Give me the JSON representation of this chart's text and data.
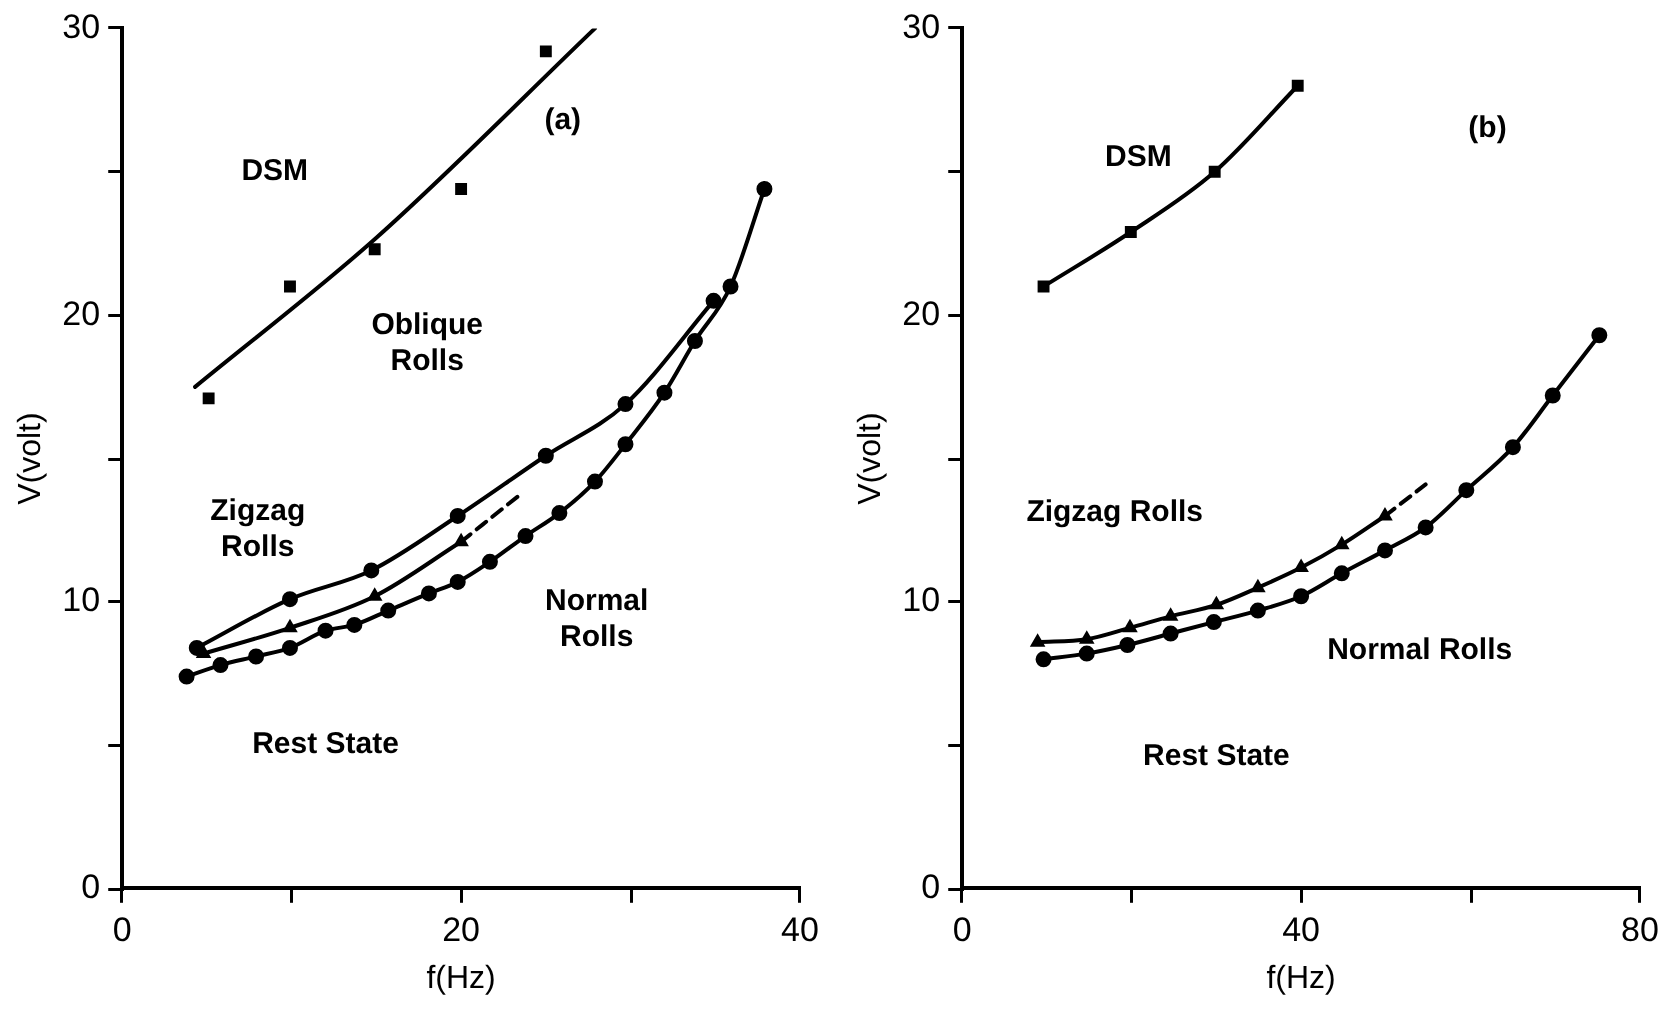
{
  "chart_data": [
    {
      "type": "line",
      "xlabel": "f(Hz)",
      "ylabel": "V(volt)",
      "xlim": [
        0,
        40
      ],
      "ylim": [
        0,
        30
      ],
      "xticks": [
        0,
        {
          "value": 10,
          "label": null
        },
        20,
        {
          "value": 30,
          "label": null
        },
        40
      ],
      "yticks": [
        0,
        {
          "value": 5,
          "label": null
        },
        10,
        {
          "value": 15,
          "label": null
        },
        20,
        {
          "value": 25,
          "label": null
        },
        30
      ],
      "grid": false,
      "legend": false,
      "series": [
        {
          "type": "scatter",
          "marker": "square",
          "color": "#000000",
          "x": [
            5.1,
            9.9,
            14.9,
            20,
            25
          ],
          "values": [
            17.1,
            21.0,
            22.3,
            24.4,
            29.2
          ]
        },
        {
          "marker": "none",
          "line_style": "solid",
          "color": "#000000",
          "x": [
            4.3,
            15,
            27.9
          ],
          "values": [
            17.5,
            22.7,
            30
          ]
        },
        {
          "marker": "circle",
          "line_style": "solid",
          "color": "#000000",
          "x": [
            4.4,
            9.9,
            14.7,
            19.8,
            25,
            29.7,
            34.9
          ],
          "values": [
            8.4,
            10.1,
            11.1,
            13.0,
            15.1,
            16.9,
            20.5
          ]
        },
        {
          "marker": "triangle",
          "line_style": "solid",
          "color": "#000000",
          "x": [
            4.8,
            9.9,
            14.9,
            20
          ],
          "values": [
            8.2,
            9.1,
            10.2,
            12.1
          ]
        },
        {
          "marker": "none",
          "line_style": "dashed",
          "color": "#000000",
          "x": [
            20,
            23.6
          ],
          "values": [
            12.1,
            13.8
          ]
        },
        {
          "marker": "circle",
          "line_style": "solid",
          "color": "#000000",
          "x": [
            3.8,
            5.8,
            7.9,
            9.9,
            12,
            13.7,
            15.7,
            18.1,
            19.8,
            21.7,
            23.8,
            25.8,
            27.9,
            29.7,
            32,
            33.8,
            35.9,
            37.9
          ],
          "values": [
            7.4,
            7.8,
            8.1,
            8.4,
            9.0,
            9.2,
            9.7,
            10.3,
            10.7,
            11.4,
            12.3,
            13.1,
            14.2,
            15.5,
            17.3,
            19.1,
            21.0,
            24.4
          ]
        }
      ],
      "annotations": [
        "(a)",
        "DSM",
        "Oblique\nRolls",
        "Zigzag\nRolls",
        "Normal\nRolls",
        "Rest State"
      ]
    },
    {
      "type": "line",
      "xlabel": "f(Hz)",
      "ylabel": "V(volt)",
      "xlim": [
        0,
        80
      ],
      "ylim": [
        0,
        30
      ],
      "xticks": [
        0,
        {
          "value": 20,
          "label": null
        },
        40,
        {
          "value": 60,
          "label": null
        },
        80
      ],
      "yticks": [
        0,
        {
          "value": 5,
          "label": null
        },
        10,
        {
          "value": 15,
          "label": null
        },
        20,
        {
          "value": 25,
          "label": null
        },
        30
      ],
      "grid": false,
      "legend": false,
      "series": [
        {
          "marker": "square",
          "line_style": "solid",
          "color": "#000000",
          "x": [
            9.6,
            19.9,
            29.8,
            39.6
          ],
          "values": [
            21.0,
            22.9,
            25.0,
            28.0
          ]
        },
        {
          "marker": "triangle",
          "line_style": "solid",
          "color": "#000000",
          "x": [
            8.9,
            14.7,
            19.8,
            24.6,
            30,
            34.9,
            40,
            44.8,
            49.9
          ],
          "values": [
            8.6,
            8.7,
            9.1,
            9.5,
            9.9,
            10.5,
            11.2,
            12.0,
            13.0
          ]
        },
        {
          "marker": "none",
          "line_style": "dashed",
          "color": "#000000",
          "x": [
            49.9,
            54.7
          ],
          "values": [
            13.0,
            14.1
          ]
        },
        {
          "marker": "circle",
          "line_style": "solid",
          "color": "#000000",
          "x": [
            9.6,
            14.7,
            19.5,
            24.6,
            29.7,
            34.9,
            40,
            44.8,
            49.9,
            54.7,
            59.5,
            65,
            69.7,
            75.2
          ],
          "values": [
            8.0,
            8.2,
            8.5,
            8.9,
            9.3,
            9.7,
            10.2,
            11.0,
            11.8,
            12.6,
            13.9,
            15.4,
            17.2,
            19.3
          ]
        }
      ],
      "annotations": [
        "(b)",
        "DSM",
        "Zigzag Rolls",
        "Normal Rolls",
        "Rest State"
      ]
    }
  ]
}
